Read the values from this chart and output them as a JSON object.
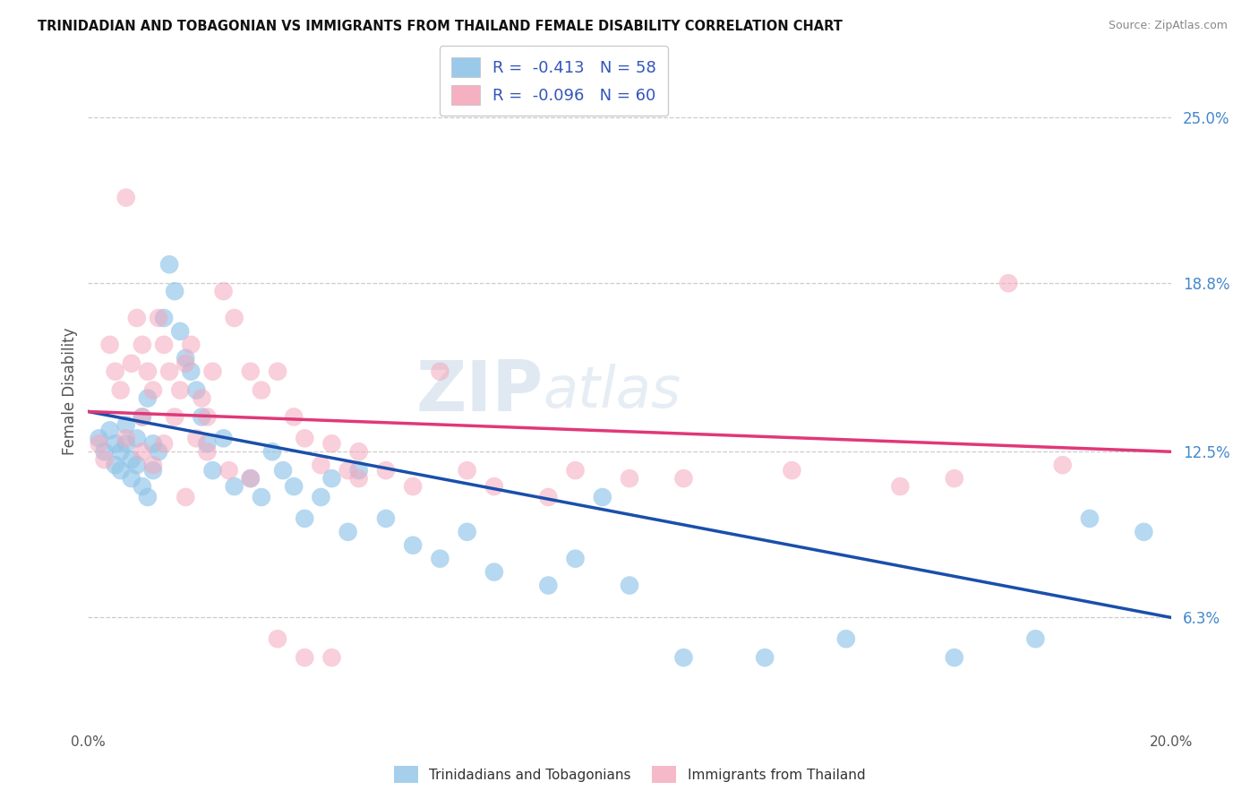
{
  "title": "TRINIDADIAN AND TOBAGONIAN VS IMMIGRANTS FROM THAILAND FEMALE DISABILITY CORRELATION CHART",
  "source": "Source: ZipAtlas.com",
  "ylabel": "Female Disability",
  "ytick_labels": [
    "6.3%",
    "12.5%",
    "18.8%",
    "25.0%"
  ],
  "ytick_values": [
    0.063,
    0.125,
    0.188,
    0.25
  ],
  "xmin": 0.0,
  "xmax": 0.2,
  "ymin": 0.025,
  "ymax": 0.27,
  "legend1_label": "R =  -0.413   N = 58",
  "legend2_label": "R =  -0.096   N = 60",
  "color_blue": "#90c4e8",
  "color_pink": "#f4a8bc",
  "line_blue": "#1a4faa",
  "line_pink": "#e03878",
  "blue_line_x0": 0.0,
  "blue_line_y0": 0.14,
  "blue_line_x1": 0.2,
  "blue_line_y1": 0.063,
  "pink_line_x0": 0.0,
  "pink_line_y0": 0.14,
  "pink_line_x1": 0.2,
  "pink_line_y1": 0.125,
  "blue_x": [
    0.002,
    0.003,
    0.004,
    0.005,
    0.005,
    0.006,
    0.006,
    0.007,
    0.007,
    0.008,
    0.008,
    0.009,
    0.009,
    0.01,
    0.01,
    0.011,
    0.011,
    0.012,
    0.012,
    0.013,
    0.014,
    0.015,
    0.016,
    0.017,
    0.018,
    0.019,
    0.02,
    0.021,
    0.022,
    0.023,
    0.025,
    0.027,
    0.03,
    0.032,
    0.034,
    0.036,
    0.038,
    0.04,
    0.043,
    0.045,
    0.048,
    0.05,
    0.055,
    0.06,
    0.065,
    0.07,
    0.075,
    0.085,
    0.09,
    0.095,
    0.1,
    0.11,
    0.125,
    0.14,
    0.16,
    0.175,
    0.185,
    0.195
  ],
  "blue_y": [
    0.13,
    0.125,
    0.133,
    0.128,
    0.12,
    0.125,
    0.118,
    0.135,
    0.128,
    0.122,
    0.115,
    0.13,
    0.12,
    0.138,
    0.112,
    0.145,
    0.108,
    0.128,
    0.118,
    0.125,
    0.175,
    0.195,
    0.185,
    0.17,
    0.16,
    0.155,
    0.148,
    0.138,
    0.128,
    0.118,
    0.13,
    0.112,
    0.115,
    0.108,
    0.125,
    0.118,
    0.112,
    0.1,
    0.108,
    0.115,
    0.095,
    0.118,
    0.1,
    0.09,
    0.085,
    0.095,
    0.08,
    0.075,
    0.085,
    0.108,
    0.075,
    0.048,
    0.048,
    0.055,
    0.048,
    0.055,
    0.1,
    0.095
  ],
  "pink_x": [
    0.002,
    0.003,
    0.004,
    0.005,
    0.006,
    0.007,
    0.007,
    0.008,
    0.009,
    0.01,
    0.01,
    0.011,
    0.012,
    0.012,
    0.013,
    0.014,
    0.015,
    0.016,
    0.017,
    0.018,
    0.019,
    0.02,
    0.021,
    0.022,
    0.023,
    0.025,
    0.027,
    0.03,
    0.032,
    0.035,
    0.038,
    0.04,
    0.043,
    0.045,
    0.048,
    0.05,
    0.055,
    0.06,
    0.065,
    0.07,
    0.075,
    0.085,
    0.09,
    0.1,
    0.11,
    0.13,
    0.15,
    0.16,
    0.17,
    0.18,
    0.01,
    0.014,
    0.018,
    0.022,
    0.026,
    0.03,
    0.035,
    0.04,
    0.045,
    0.05
  ],
  "pink_y": [
    0.128,
    0.122,
    0.165,
    0.155,
    0.148,
    0.22,
    0.13,
    0.158,
    0.175,
    0.165,
    0.125,
    0.155,
    0.148,
    0.12,
    0.175,
    0.165,
    0.155,
    0.138,
    0.148,
    0.158,
    0.165,
    0.13,
    0.145,
    0.138,
    0.155,
    0.185,
    0.175,
    0.155,
    0.148,
    0.155,
    0.138,
    0.13,
    0.12,
    0.128,
    0.118,
    0.125,
    0.118,
    0.112,
    0.155,
    0.118,
    0.112,
    0.108,
    0.118,
    0.115,
    0.115,
    0.118,
    0.112,
    0.115,
    0.188,
    0.12,
    0.138,
    0.128,
    0.108,
    0.125,
    0.118,
    0.115,
    0.055,
    0.048,
    0.048,
    0.115
  ]
}
